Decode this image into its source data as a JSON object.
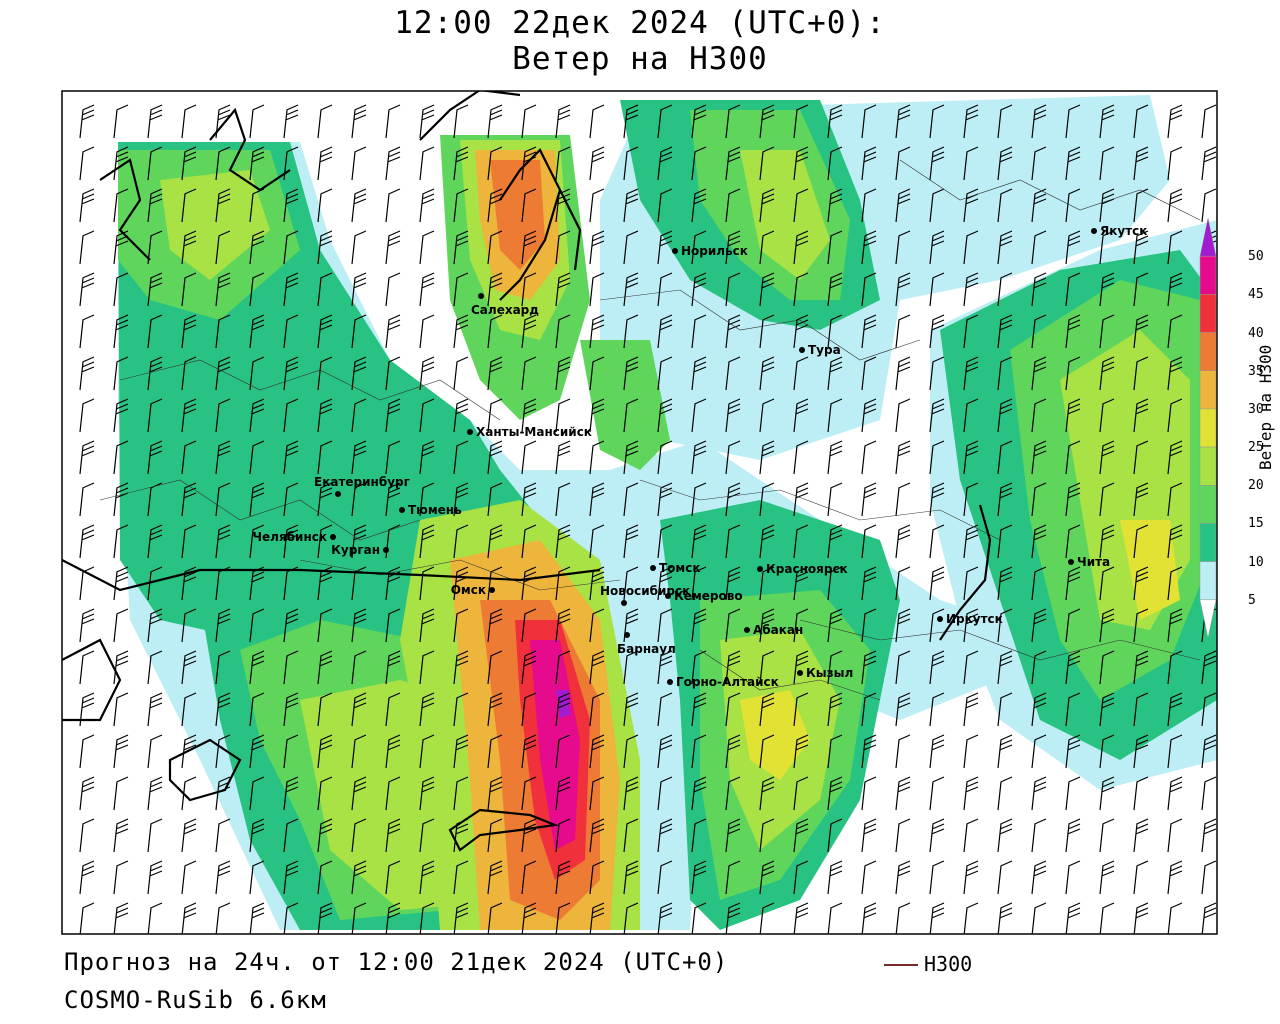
{
  "title": {
    "line1": "12:00 22дек 2024 (UTC+0):",
    "line2": "Ветер на H300"
  },
  "footer": {
    "forecast": "Прогноз на 24ч. от 12:00 21дек 2024 (UTC+0)",
    "model": "COSMO-RuSib 6.6км"
  },
  "legend": {
    "contour_label": "H300",
    "contour_color": "#7a2a2a"
  },
  "colorbar": {
    "title": "Ветер на H300",
    "ticks": [
      "5",
      "10",
      "15",
      "20",
      "25",
      "30",
      "35",
      "40",
      "45",
      "50"
    ],
    "colors": [
      "#ffffff",
      "#bdeef5",
      "#28c383",
      "#5fd65b",
      "#a8e245",
      "#e2e234",
      "#edb53b",
      "#ee7b33",
      "#f0303a",
      "#e60b8c",
      "#a11bd0"
    ]
  },
  "cities": [
    {
      "name": "Норильск"
    },
    {
      "name": "Якутск"
    },
    {
      "name": "Салехард"
    },
    {
      "name": "Тура"
    },
    {
      "name": "Ханты-Мансийск"
    },
    {
      "name": "Екатеринбург"
    },
    {
      "name": "Тюмень"
    },
    {
      "name": "Челябинск"
    },
    {
      "name": "Курган"
    },
    {
      "name": "Омск"
    },
    {
      "name": "Новосибирск"
    },
    {
      "name": "Томск"
    },
    {
      "name": "Красноярск"
    },
    {
      "name": "Кемерово"
    },
    {
      "name": "Барнаул"
    },
    {
      "name": "Абакан"
    },
    {
      "name": "Иркутск"
    },
    {
      "name": "Чита"
    },
    {
      "name": "Кызыл"
    },
    {
      "name": "Горно-Алтайск"
    }
  ]
}
